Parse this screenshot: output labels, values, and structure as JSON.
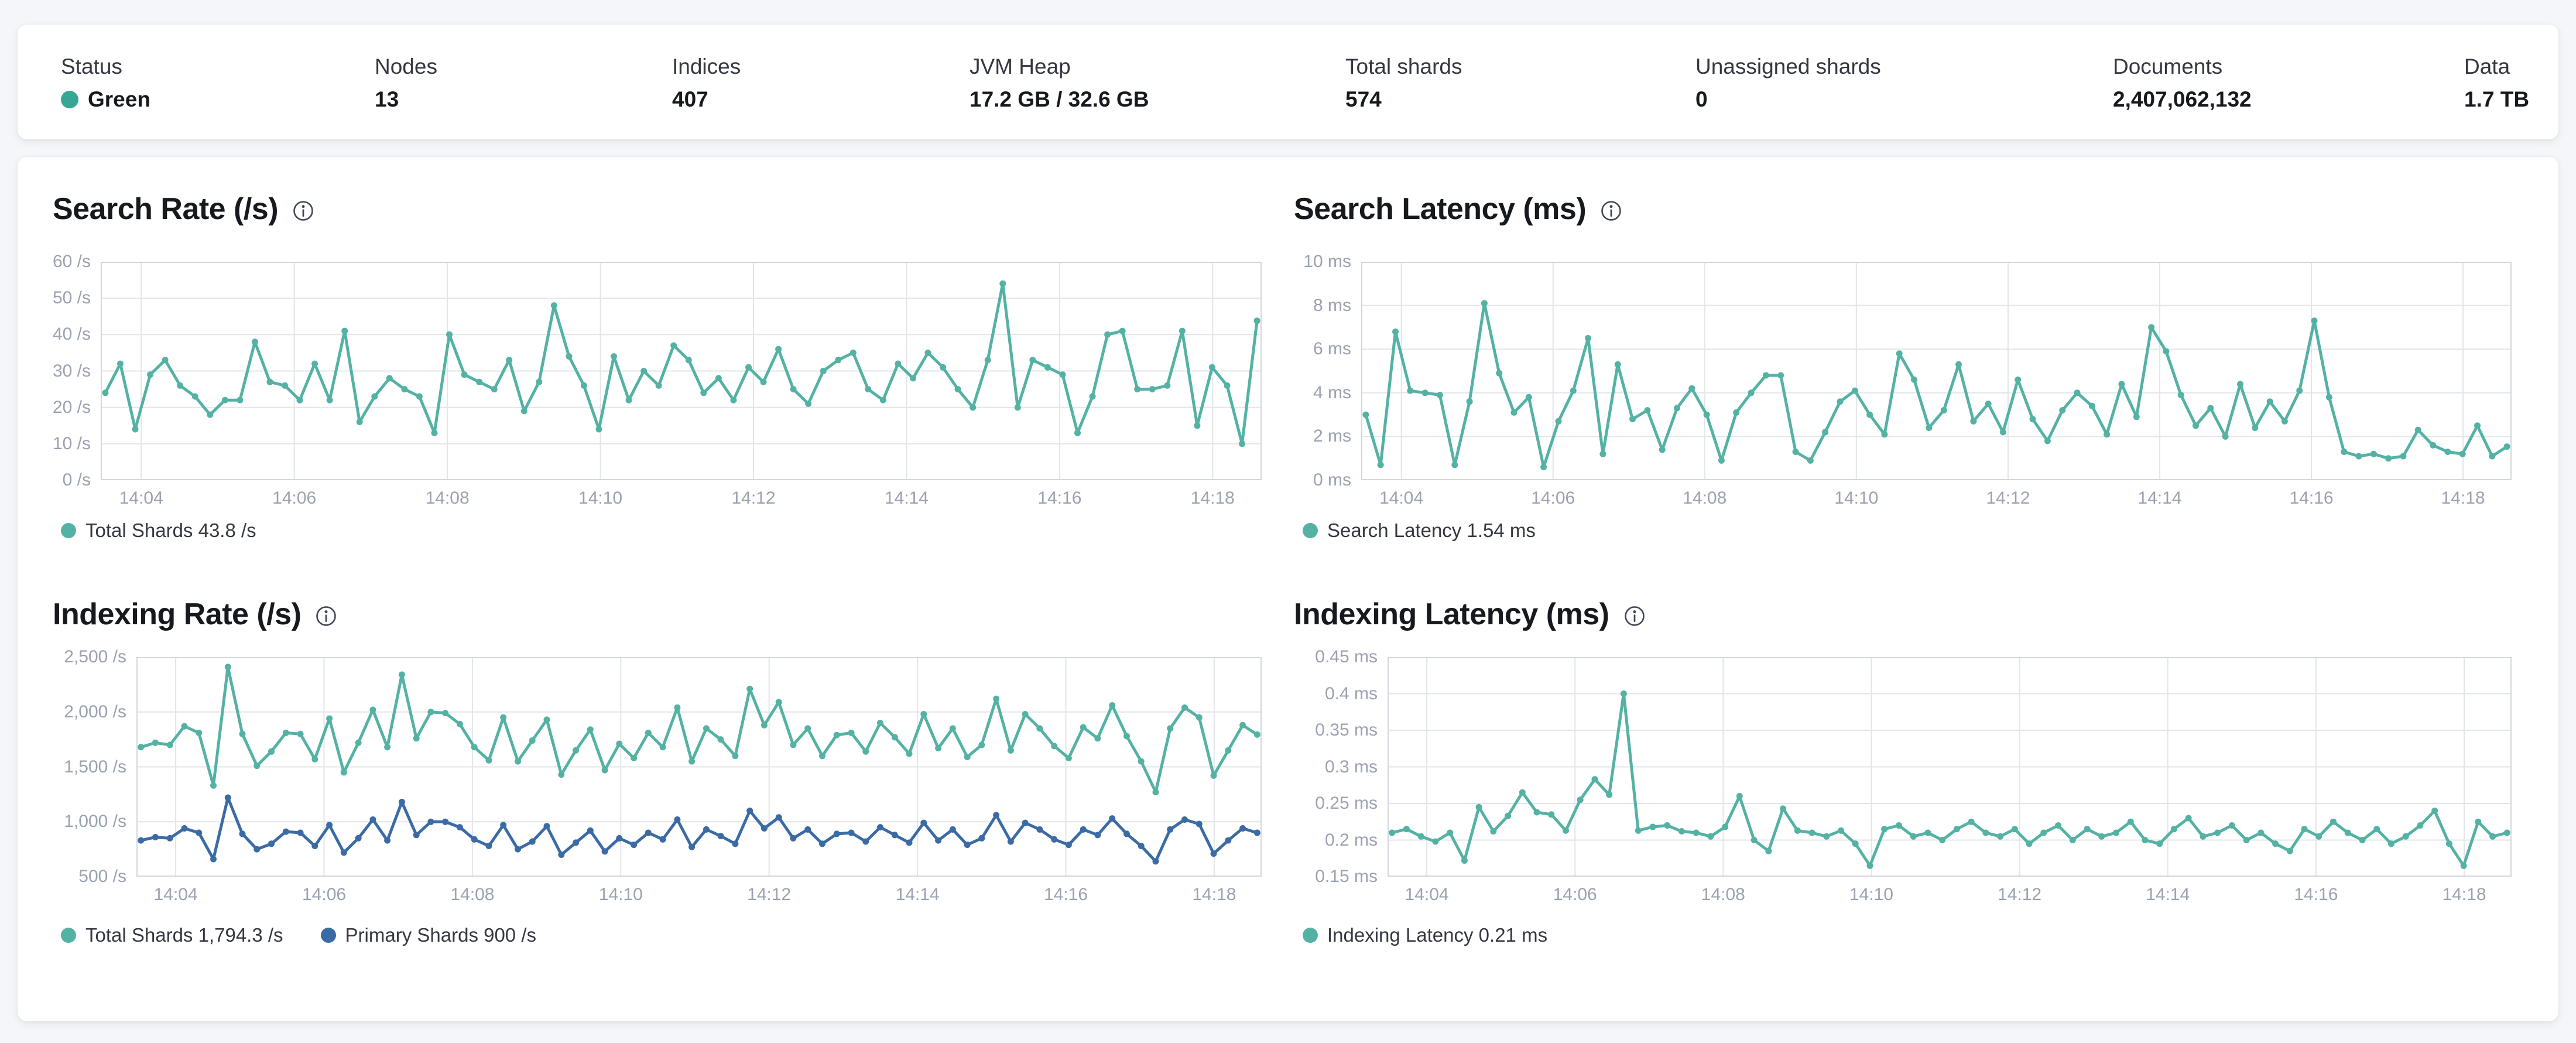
{
  "theme": {
    "accent_teal": "#54b2a4",
    "accent_blue": "#3b6ba5",
    "status_green": "#35a794",
    "grid_color": "#e2e5ea",
    "axis_color": "#d3d7de",
    "tick_color": "#9aa2b1"
  },
  "stats": [
    {
      "label": "Status",
      "value": "Green",
      "dot_color": "#35a794"
    },
    {
      "label": "Nodes",
      "value": "13"
    },
    {
      "label": "Indices",
      "value": "407"
    },
    {
      "label": "JVM Heap",
      "value": "17.2 GB / 32.6 GB"
    },
    {
      "label": "Total shards",
      "value": "574"
    },
    {
      "label": "Unassigned shards",
      "value": "0"
    },
    {
      "label": "Documents",
      "value": "2,407,062,132"
    },
    {
      "label": "Data",
      "value": "1.7 TB"
    }
  ],
  "chart_data": [
    {
      "type": "line",
      "title": "Search Rate (/s)",
      "ylabel": "/s",
      "ylim": [
        0,
        60
      ],
      "x_range": [
        3.47,
        18.64
      ],
      "grid": true,
      "legend_position": "bottom-left",
      "yticks": [
        {
          "label": "60 /s",
          "value": 60
        },
        {
          "label": "50 /s",
          "value": 50
        },
        {
          "label": "40 /s",
          "value": 40
        },
        {
          "label": "30 /s",
          "value": 30
        },
        {
          "label": "20 /s",
          "value": 20
        },
        {
          "label": "10 /s",
          "value": 10
        },
        {
          "label": "0 /s",
          "value": 0
        }
      ],
      "xticks": [
        {
          "label": "14:04",
          "value": 4
        },
        {
          "label": "14:06",
          "value": 6
        },
        {
          "label": "14:08",
          "value": 8
        },
        {
          "label": "14:10",
          "value": 10
        },
        {
          "label": "14:12",
          "value": 12
        },
        {
          "label": "14:14",
          "value": 14
        },
        {
          "label": "14:16",
          "value": 16
        },
        {
          "label": "14:18",
          "value": 18
        }
      ],
      "series": [
        {
          "name": "Total Shards",
          "legend_label": "Total Shards 43.8 /s",
          "current": "43.8 /s",
          "color": "#54b2a4",
          "values": [
            24,
            32,
            14,
            29,
            33,
            26,
            23,
            18,
            22,
            22,
            38,
            27,
            26,
            22,
            32,
            22,
            41,
            16,
            23,
            28,
            25,
            23,
            13,
            40,
            29,
            27,
            25,
            33,
            19,
            27,
            48,
            34,
            26,
            14,
            34,
            22,
            30,
            26,
            37,
            33,
            24,
            28,
            22,
            31,
            27,
            36,
            25,
            21,
            30,
            33,
            35,
            25,
            22,
            32,
            28,
            35,
            31,
            25,
            20,
            33,
            54,
            20,
            33,
            31,
            29,
            13,
            23,
            40,
            41,
            25,
            25,
            26,
            41,
            15,
            31,
            26,
            10,
            43.8
          ]
        }
      ]
    },
    {
      "type": "line",
      "title": "Search Latency (ms)",
      "ylabel": "ms",
      "ylim": [
        0,
        10
      ],
      "x_range": [
        3.47,
        18.64
      ],
      "grid": true,
      "legend_position": "bottom-left",
      "yticks": [
        {
          "label": "10 ms",
          "value": 10
        },
        {
          "label": "8 ms",
          "value": 8
        },
        {
          "label": "6 ms",
          "value": 6
        },
        {
          "label": "4 ms",
          "value": 4
        },
        {
          "label": "2 ms",
          "value": 2
        },
        {
          "label": "0 ms",
          "value": 0
        }
      ],
      "xticks": [
        {
          "label": "14:04",
          "value": 4
        },
        {
          "label": "14:06",
          "value": 6
        },
        {
          "label": "14:08",
          "value": 8
        },
        {
          "label": "14:10",
          "value": 10
        },
        {
          "label": "14:12",
          "value": 12
        },
        {
          "label": "14:14",
          "value": 14
        },
        {
          "label": "14:16",
          "value": 16
        },
        {
          "label": "14:18",
          "value": 18
        }
      ],
      "series": [
        {
          "name": "Search Latency",
          "legend_label": "Search Latency 1.54 ms",
          "current": "1.54 ms",
          "color": "#54b2a4",
          "values": [
            3.0,
            0.7,
            6.8,
            4.1,
            4.0,
            3.9,
            0.7,
            3.6,
            8.1,
            4.9,
            3.1,
            3.8,
            0.6,
            2.7,
            4.1,
            6.5,
            1.2,
            5.3,
            2.8,
            3.2,
            1.4,
            3.3,
            4.2,
            3.0,
            0.9,
            3.1,
            4.0,
            4.8,
            4.8,
            1.3,
            0.9,
            2.2,
            3.6,
            4.1,
            3.0,
            2.1,
            5.8,
            4.6,
            2.4,
            3.2,
            5.3,
            2.7,
            3.5,
            2.2,
            4.6,
            2.8,
            1.8,
            3.2,
            4.0,
            3.4,
            2.1,
            4.4,
            2.9,
            7.0,
            5.9,
            3.9,
            2.5,
            3.3,
            2.0,
            4.4,
            2.4,
            3.6,
            2.7,
            4.1,
            7.3,
            3.8,
            1.3,
            1.1,
            1.2,
            1.0,
            1.1,
            2.3,
            1.6,
            1.3,
            1.2,
            2.5,
            1.1,
            1.54
          ]
        }
      ]
    },
    {
      "type": "line",
      "title": "Indexing Rate (/s)",
      "ylabel": "/s",
      "ylim": [
        500,
        2500
      ],
      "x_range": [
        3.47,
        18.64
      ],
      "grid": true,
      "legend_position": "bottom-left",
      "yticks": [
        {
          "label": "2,500 /s",
          "value": 2500
        },
        {
          "label": "2,000 /s",
          "value": 2000
        },
        {
          "label": "1,500 /s",
          "value": 1500
        },
        {
          "label": "1,000 /s",
          "value": 1000
        },
        {
          "label": "500 /s",
          "value": 500
        }
      ],
      "xticks": [
        {
          "label": "14:04",
          "value": 4
        },
        {
          "label": "14:06",
          "value": 6
        },
        {
          "label": "14:08",
          "value": 8
        },
        {
          "label": "14:10",
          "value": 10
        },
        {
          "label": "14:12",
          "value": 12
        },
        {
          "label": "14:14",
          "value": 14
        },
        {
          "label": "14:16",
          "value": 16
        },
        {
          "label": "14:18",
          "value": 18
        }
      ],
      "series": [
        {
          "name": "Total Shards",
          "legend_label": "Total Shards 1,794.3 /s",
          "current": "1,794.3 /s",
          "color": "#54b2a4",
          "values": [
            1680,
            1720,
            1700,
            1870,
            1810,
            1330,
            2410,
            1800,
            1510,
            1640,
            1810,
            1800,
            1570,
            1940,
            1450,
            1720,
            2020,
            1680,
            2340,
            1760,
            2000,
            1990,
            1890,
            1680,
            1560,
            1950,
            1550,
            1740,
            1930,
            1430,
            1650,
            1840,
            1470,
            1710,
            1580,
            1810,
            1680,
            2040,
            1550,
            1850,
            1750,
            1600,
            2210,
            1880,
            2090,
            1700,
            1850,
            1600,
            1790,
            1810,
            1640,
            1900,
            1770,
            1620,
            1980,
            1670,
            1850,
            1590,
            1700,
            2120,
            1650,
            1980,
            1850,
            1690,
            1580,
            1860,
            1760,
            2060,
            1780,
            1550,
            1270,
            1850,
            2040,
            1950,
            1420,
            1650,
            1880,
            1794.3
          ]
        },
        {
          "name": "Primary Shards",
          "legend_label": "Primary Shards 900 /s",
          "current": "900 /s",
          "color": "#3b6ba5",
          "values": [
            830,
            860,
            850,
            940,
            900,
            660,
            1220,
            890,
            750,
            800,
            910,
            900,
            780,
            970,
            720,
            850,
            1020,
            830,
            1180,
            880,
            1000,
            1000,
            950,
            840,
            780,
            970,
            750,
            820,
            960,
            700,
            810,
            920,
            730,
            850,
            790,
            900,
            840,
            1020,
            770,
            930,
            870,
            800,
            1100,
            940,
            1040,
            850,
            930,
            800,
            890,
            900,
            820,
            950,
            880,
            810,
            990,
            830,
            930,
            790,
            850,
            1060,
            820,
            990,
            930,
            840,
            790,
            930,
            880,
            1030,
            890,
            780,
            640,
            930,
            1020,
            980,
            710,
            830,
            940,
            900
          ]
        }
      ]
    },
    {
      "type": "line",
      "title": "Indexing Latency (ms)",
      "ylabel": "ms",
      "ylim": [
        0.15,
        0.45
      ],
      "x_range": [
        3.47,
        18.64
      ],
      "grid": true,
      "legend_position": "bottom-left",
      "yticks": [
        {
          "label": "0.45 ms",
          "value": 0.45
        },
        {
          "label": "0.4 ms",
          "value": 0.4
        },
        {
          "label": "0.35 ms",
          "value": 0.35
        },
        {
          "label": "0.3 ms",
          "value": 0.3
        },
        {
          "label": "0.25 ms",
          "value": 0.25
        },
        {
          "label": "0.2 ms",
          "value": 0.2
        },
        {
          "label": "0.15 ms",
          "value": 0.15
        }
      ],
      "xticks": [
        {
          "label": "14:04",
          "value": 4
        },
        {
          "label": "14:06",
          "value": 6
        },
        {
          "label": "14:08",
          "value": 8
        },
        {
          "label": "14:10",
          "value": 10
        },
        {
          "label": "14:12",
          "value": 12
        },
        {
          "label": "14:14",
          "value": 14
        },
        {
          "label": "14:16",
          "value": 16
        },
        {
          "label": "14:18",
          "value": 18
        }
      ],
      "series": [
        {
          "name": "Indexing Latency",
          "legend_label": "Indexing Latency 0.21 ms",
          "current": "0.21 ms",
          "color": "#54b2a4",
          "values": [
            0.21,
            0.215,
            0.205,
            0.198,
            0.21,
            0.172,
            0.245,
            0.212,
            0.233,
            0.265,
            0.238,
            0.235,
            0.213,
            0.255,
            0.283,
            0.262,
            0.4,
            0.213,
            0.218,
            0.22,
            0.212,
            0.21,
            0.205,
            0.218,
            0.26,
            0.2,
            0.185,
            0.243,
            0.213,
            0.21,
            0.205,
            0.213,
            0.195,
            0.165,
            0.215,
            0.22,
            0.205,
            0.21,
            0.2,
            0.215,
            0.225,
            0.21,
            0.205,
            0.215,
            0.195,
            0.21,
            0.22,
            0.2,
            0.215,
            0.205,
            0.21,
            0.225,
            0.2,
            0.195,
            0.215,
            0.23,
            0.205,
            0.21,
            0.22,
            0.2,
            0.21,
            0.195,
            0.185,
            0.215,
            0.205,
            0.225,
            0.21,
            0.2,
            0.215,
            0.195,
            0.205,
            0.22,
            0.24,
            0.195,
            0.165,
            0.225,
            0.205,
            0.21
          ]
        }
      ]
    }
  ]
}
